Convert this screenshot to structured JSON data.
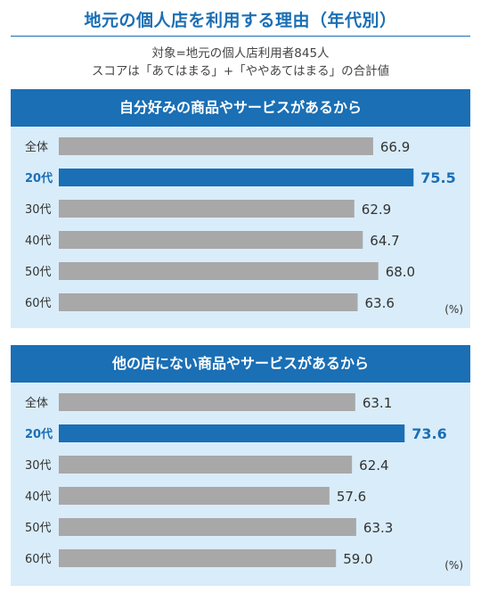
{
  "title": "地元の個人店を利用する理由（年代別）",
  "subtitle_line1": "対象=地元の個人店利用者845人",
  "subtitle_line2": "スコアは「あてはまる」+「ややあてはまる」の合計値",
  "colors": {
    "accent": "#1a6fb5",
    "bar": "#a8a8a8",
    "panel_bg": "#d9ecf9",
    "text": "#333333"
  },
  "chart_data": [
    {
      "type": "bar",
      "orientation": "horizontal",
      "title": "自分好みの商品やサービスがあるから",
      "unit": "(%)",
      "categories": [
        "全体",
        "20代",
        "30代",
        "40代",
        "50代",
        "60代"
      ],
      "values": [
        66.9,
        75.5,
        62.9,
        64.7,
        68.0,
        63.6
      ],
      "labels": [
        "66.9",
        "75.5",
        "62.9",
        "64.7",
        "68.0",
        "63.6"
      ],
      "highlight": "20代",
      "xlim": [
        0,
        80
      ]
    },
    {
      "type": "bar",
      "orientation": "horizontal",
      "title": "他の店にない商品やサービスがあるから",
      "unit": "(%)",
      "categories": [
        "全体",
        "20代",
        "30代",
        "40代",
        "50代",
        "60代"
      ],
      "values": [
        63.1,
        73.6,
        62.4,
        57.6,
        63.3,
        59.0
      ],
      "labels": [
        "63.1",
        "73.6",
        "62.4",
        "57.6",
        "63.3",
        "59.0"
      ],
      "highlight": "20代",
      "xlim": [
        0,
        80
      ]
    }
  ]
}
